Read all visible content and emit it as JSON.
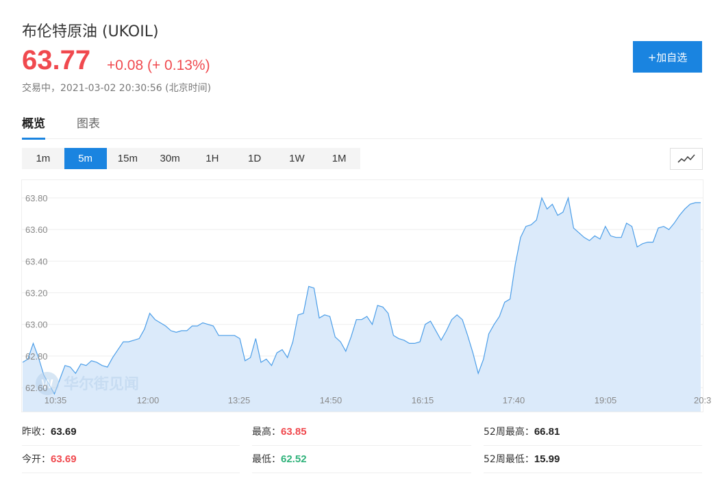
{
  "header": {
    "title": "布伦特原油 (UKOIL)",
    "price": "63.77",
    "change": "+0.08 (+ 0.13%)",
    "status": "交易中，2021-03-02 20:30:56 (北京时间)",
    "add_button": "+加自选"
  },
  "tabs": [
    {
      "label": "概览",
      "active": true
    },
    {
      "label": "图表",
      "active": false
    }
  ],
  "periods": [
    "1m",
    "5m",
    "15m",
    "30m",
    "1H",
    "1D",
    "1W",
    "1M"
  ],
  "active_period": "5m",
  "watermark": "华尔街见闻",
  "chart_data": {
    "type": "area",
    "y_ticks": [
      "63.80",
      "63.60",
      "63.40",
      "63.20",
      "63.00",
      "62.80",
      "62.60"
    ],
    "x_ticks": [
      "10:35",
      "12:00",
      "13:25",
      "14:50",
      "16:15",
      "17:40",
      "19:05",
      "20:3"
    ],
    "ylim": [
      62.52,
      63.85
    ],
    "values": [
      62.76,
      62.78,
      62.88,
      62.79,
      62.68,
      62.62,
      62.56,
      62.65,
      62.74,
      62.73,
      62.69,
      62.75,
      62.74,
      62.77,
      62.76,
      62.74,
      62.73,
      62.79,
      62.84,
      62.89,
      62.89,
      62.9,
      62.91,
      62.97,
      63.07,
      63.03,
      63.01,
      62.99,
      62.96,
      62.95,
      62.96,
      62.96,
      62.99,
      62.99,
      63.01,
      63.0,
      62.99,
      62.93,
      62.93,
      62.93,
      62.93,
      62.91,
      62.77,
      62.79,
      62.91,
      62.76,
      62.78,
      62.74,
      62.82,
      62.84,
      62.79,
      62.89,
      63.06,
      63.07,
      63.24,
      63.23,
      63.04,
      63.06,
      63.05,
      62.92,
      62.89,
      62.83,
      62.92,
      63.03,
      63.03,
      63.05,
      63.0,
      63.12,
      63.11,
      63.07,
      62.93,
      62.91,
      62.9,
      62.88,
      62.88,
      62.89,
      63.0,
      63.02,
      62.96,
      62.9,
      62.96,
      63.03,
      63.06,
      63.03,
      62.93,
      62.82,
      62.69,
      62.78,
      62.94,
      63.0,
      63.05,
      63.14,
      63.16,
      63.38,
      63.55,
      63.62,
      63.63,
      63.66,
      63.8,
      63.73,
      63.76,
      63.69,
      63.71,
      63.8,
      63.61,
      63.58,
      63.55,
      63.53,
      63.56,
      63.54,
      63.62,
      63.56,
      63.55,
      63.55,
      63.64,
      63.62,
      63.49,
      63.51,
      63.52,
      63.52,
      63.61,
      63.62,
      63.6,
      63.64,
      63.69,
      63.73,
      63.76,
      63.77,
      63.77
    ],
    "area_color": "#dbeafa",
    "line_color": "#4a9de8"
  },
  "stats": {
    "prev_close": {
      "label": "昨收：",
      "value": "63.69"
    },
    "open": {
      "label": "今开：",
      "value": "63.69"
    },
    "high": {
      "label": "最高：",
      "value": "63.85"
    },
    "low": {
      "label": "最低：",
      "value": "62.52"
    },
    "wk52_high": {
      "label": "52周最高：",
      "value": "66.81"
    },
    "wk52_low": {
      "label": "52周最低：",
      "value": "15.99"
    }
  }
}
